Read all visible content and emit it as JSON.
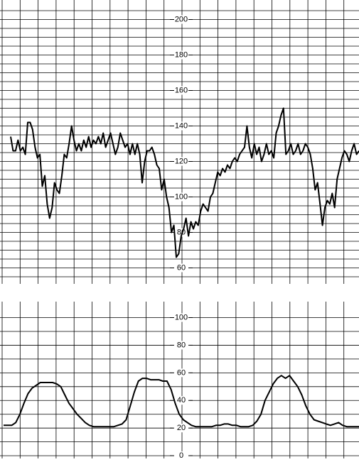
{
  "chart_data": [
    {
      "type": "line",
      "color": "#000000",
      "ylim": [
        51,
        209
      ],
      "yticks": [
        60,
        80,
        100,
        120,
        140,
        160,
        180,
        200
      ],
      "grid": true,
      "grid_step": 5,
      "values": [
        134,
        126,
        126,
        132,
        126,
        128,
        124,
        142,
        142,
        138,
        128,
        122,
        124,
        106,
        112,
        96,
        88,
        94,
        108,
        104,
        102,
        112,
        124,
        122,
        130,
        140,
        132,
        126,
        130,
        126,
        132,
        128,
        134,
        128,
        132,
        130,
        134,
        130,
        136,
        128,
        132,
        136,
        130,
        124,
        128,
        136,
        132,
        128,
        130,
        124,
        130,
        124,
        130,
        124,
        108,
        120,
        126,
        126,
        128,
        124,
        118,
        116,
        104,
        110,
        100,
        94,
        80,
        84,
        66,
        68,
        78,
        82,
        88,
        78,
        86,
        82,
        86,
        84,
        92,
        96,
        94,
        92,
        100,
        102,
        108,
        114,
        112,
        116,
        114,
        118,
        116,
        120,
        122,
        120,
        124,
        126,
        128,
        140,
        128,
        122,
        130,
        124,
        128,
        120,
        124,
        130,
        124,
        126,
        122,
        136,
        140,
        146,
        150,
        124,
        126,
        130,
        124,
        126,
        130,
        124,
        126,
        130,
        128,
        124,
        116,
        104,
        108,
        96,
        84,
        94,
        98,
        96,
        102,
        94,
        110,
        116,
        122,
        126,
        124,
        120,
        126,
        130,
        124,
        126
      ]
    },
    {
      "type": "line",
      "color": "#000000",
      "ylim": [
        -2,
        109
      ],
      "yticks": [
        0,
        20,
        40,
        60,
        80,
        100
      ],
      "grid": true,
      "grid_step": 10,
      "values": [
        22,
        22,
        22,
        24,
        30,
        38,
        45,
        49,
        51,
        53,
        53,
        53,
        53,
        52,
        50,
        44,
        38,
        34,
        30,
        27,
        24,
        22,
        21,
        21,
        21,
        21,
        21,
        21,
        22,
        23,
        26,
        36,
        46,
        54,
        56,
        56,
        55,
        55,
        55,
        54,
        54,
        48,
        38,
        30,
        26,
        24,
        22,
        21,
        21,
        21,
        21,
        21,
        22,
        22,
        23,
        23,
        22,
        22,
        21,
        21,
        21,
        22,
        25,
        30,
        40,
        46,
        52,
        56,
        58,
        56,
        58,
        54,
        50,
        44,
        36,
        30,
        26,
        25,
        24,
        23,
        22,
        23,
        24,
        22,
        21,
        21,
        21,
        21
      ]
    }
  ]
}
